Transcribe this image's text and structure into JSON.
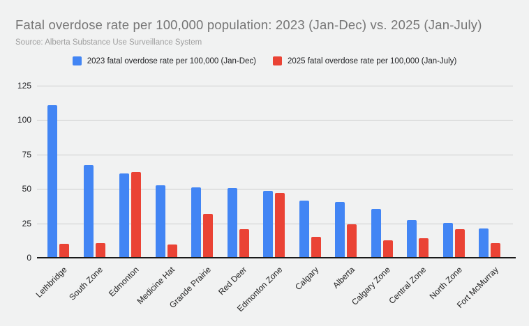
{
  "header": {
    "title": "Fatal overdose rate per 100,000 population: 2023 (Jan-Dec) vs. 2025 (Jan-July)",
    "source": "Source: Alberta Substance Use Surveillance System"
  },
  "colors": {
    "background": "#f1f2f2",
    "gridline": "#cccccc",
    "axis_line": "#1a1a1a",
    "title_text": "#757575",
    "source_text": "#9e9e9e",
    "tick_text": "#202124",
    "series_2023": "#4285f4",
    "series_2025": "#ea4335"
  },
  "chart_data": {
    "type": "bar",
    "title": "Fatal overdose rate per 100,000 population: 2023 (Jan-Dec) vs. 2025 (Jan-July)",
    "subtitle": "Source: Alberta Substance Use Surveillance System",
    "categories": [
      "Lethbridge",
      "South Zone",
      "Edmonton",
      "Medicine Hat",
      "Grande Prairie",
      "Red Deer",
      "Edmonton Zone",
      "Calgary",
      "Alberta",
      "Calgary Zone",
      "Central Zone",
      "North Zone",
      "Fort McMurray"
    ],
    "series": [
      {
        "name": "2023 fatal overdose rate per 100,000 (Jan-Dec)",
        "color": "#4285f4",
        "values": [
          110.5,
          67,
          60.5,
          52,
          50.5,
          50,
          48,
          41,
          40,
          35,
          27,
          25,
          21
        ]
      },
      {
        "name": "2025 fatal overdose rate per 100,000 (Jan-July)",
        "color": "#ea4335",
        "values": [
          9.5,
          10,
          61.5,
          9,
          31.5,
          20.5,
          46.5,
          14.5,
          24,
          12,
          13.5,
          20,
          10
        ]
      }
    ],
    "xlabel": "",
    "ylabel": "",
    "ylim": [
      0,
      125
    ],
    "yticks": [
      0,
      25,
      50,
      75,
      100,
      125
    ],
    "grid": true,
    "legend_position": "top"
  }
}
